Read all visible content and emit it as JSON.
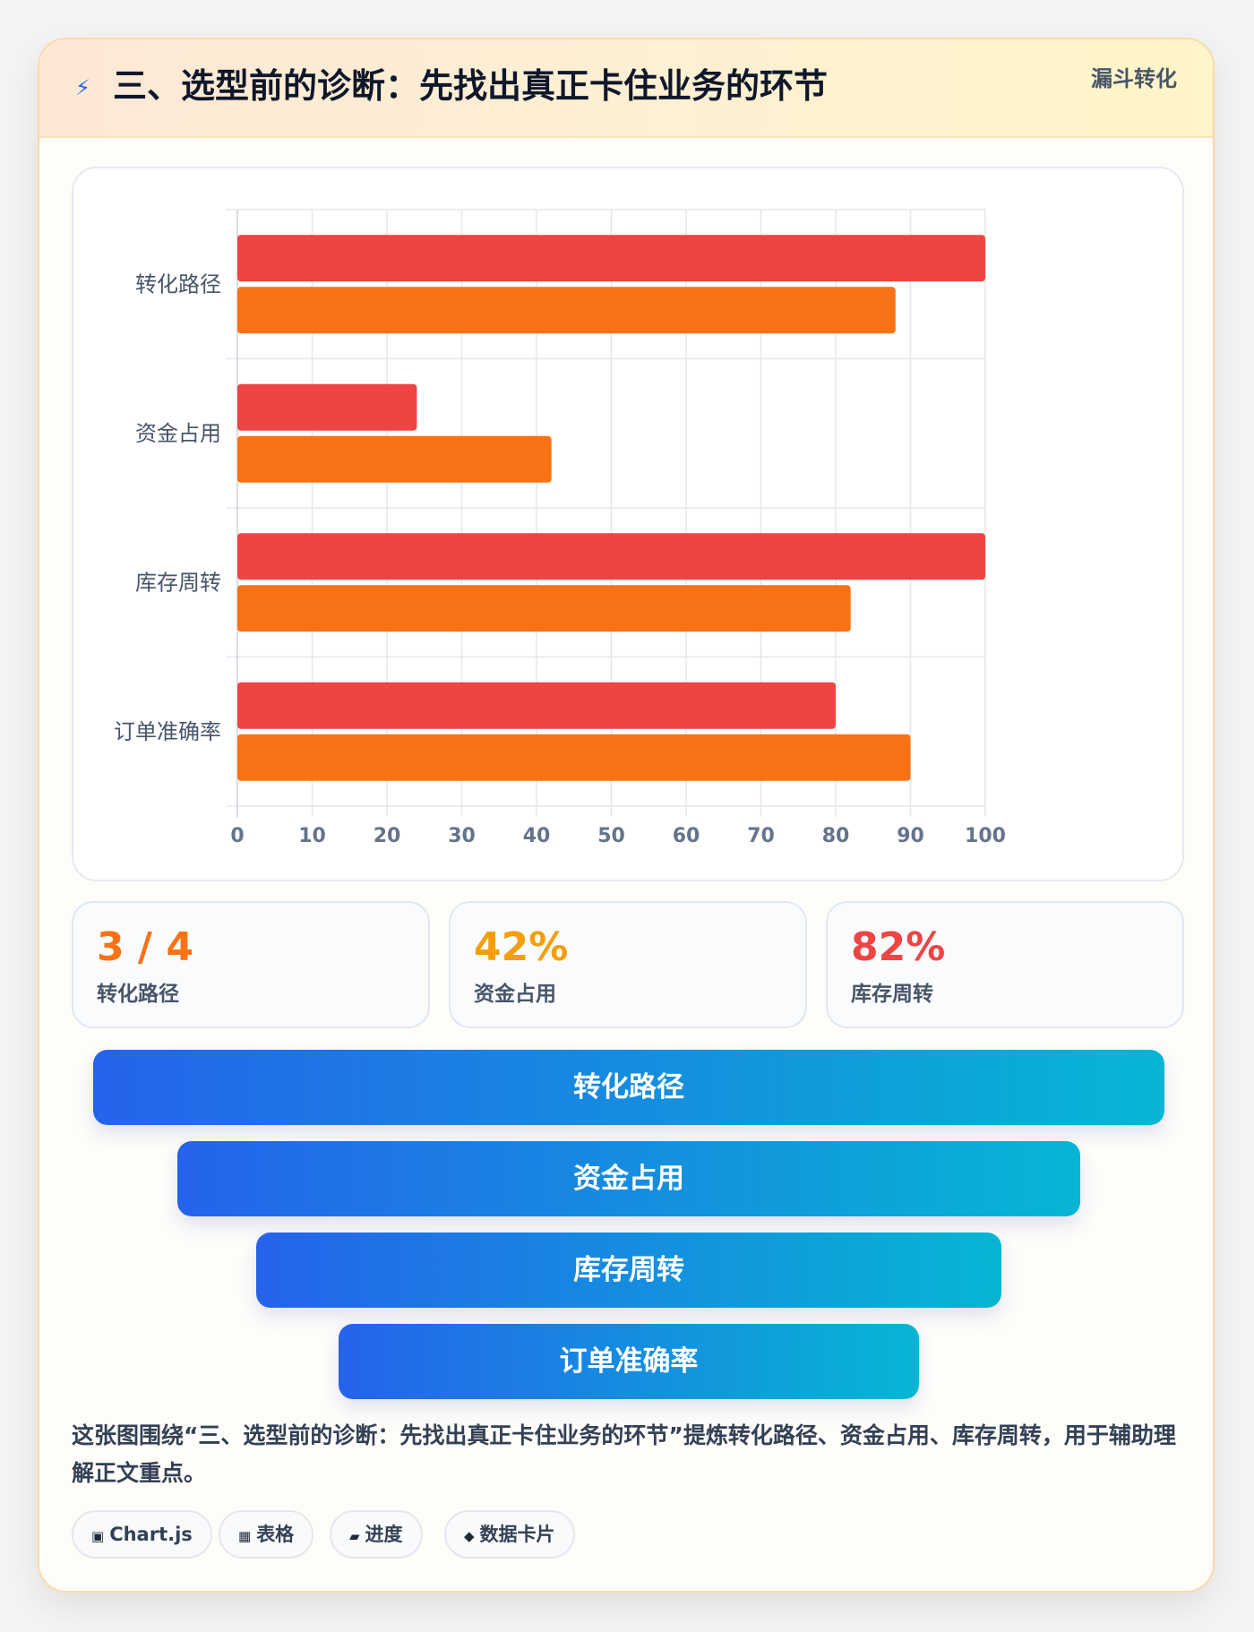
{
  "header": {
    "icon": "⚡",
    "title": "三、选型前的诊断：先找出真正卡住业务的环节",
    "tag": "漏斗转化"
  },
  "chart_data": {
    "type": "bar",
    "orientation": "horizontal",
    "categories": [
      "转化路径",
      "资金占用",
      "库存周转",
      "订单准确率"
    ],
    "series": [
      {
        "values": [
          100,
          24,
          100,
          80
        ],
        "color": "#ef4444"
      },
      {
        "values": [
          88,
          42,
          82,
          90
        ],
        "color": "#f97316"
      }
    ],
    "xlim": [
      0,
      100
    ],
    "xticks": [
      0,
      10,
      20,
      30,
      40,
      50,
      60,
      70,
      80,
      90,
      100
    ],
    "grid": true,
    "legend": "none"
  },
  "stats": [
    {
      "value": "3 / 4",
      "label": "转化路径",
      "color": "#f97316"
    },
    {
      "value": "42%",
      "label": "资金占用",
      "color": "#f59e0b"
    },
    {
      "value": "82%",
      "label": "库存周转",
      "color": "#ef4444"
    }
  ],
  "funnel": {
    "steps": [
      "转化路径",
      "资金占用",
      "库存周转",
      "订单准确率"
    ],
    "gradient": [
      "#2563eb",
      "#06b6d4"
    ]
  },
  "caption": "这张图围绕“三、选型前的诊断：先找出真正卡住业务的环节”提炼转化路径、资金占用、库存周转，用于辅助理解正文重点。",
  "chips": [
    {
      "icon": "▣",
      "icon_name": "chart-icon",
      "label": "Chart.js"
    },
    {
      "icon": "▦",
      "icon_name": "table-icon",
      "label": "表格"
    },
    {
      "icon": "▰",
      "icon_name": "progress-icon",
      "label": "进度"
    },
    {
      "icon": "◆",
      "icon_name": "data-card-icon",
      "label": "数据卡片"
    }
  ]
}
